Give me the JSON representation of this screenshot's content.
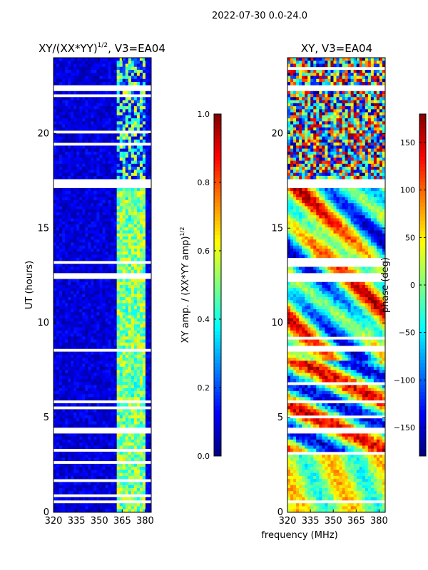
{
  "suptitle": "2022-07-30 0.0-24.0",
  "shared_xlabel": "frequency (MHz)",
  "colormap": "jet",
  "chart_data": [
    {
      "type": "heatmap",
      "title": "XY/(XX*YY)",
      "title_sup": "1/2",
      "title_suffix": ", V3=EA04",
      "ylabel": "UT (hours)",
      "xlim": [
        320,
        384
      ],
      "ylim": [
        0,
        24
      ],
      "xticks": [
        "320",
        "335",
        "350",
        "365",
        "380"
      ],
      "xtick_values": [
        320,
        335,
        350,
        365,
        380
      ],
      "yticks": [
        "0",
        "5",
        "10",
        "15",
        "20"
      ],
      "ytick_values": [
        0,
        5,
        10,
        15,
        20
      ],
      "colorbar": {
        "label": "XY amp. / (XX*YY amp)",
        "label_sup": "1/2",
        "range": [
          0.0,
          1.0
        ],
        "ticks": [
          "0.0",
          "0.2",
          "0.4",
          "0.6",
          "0.8",
          "1.0"
        ],
        "tick_values": [
          0.0,
          0.2,
          0.4,
          0.6,
          0.8,
          1.0
        ]
      },
      "bright_bands_mhz": [
        [
          361,
          363
        ],
        [
          364,
          367
        ],
        [
          368,
          372
        ],
        [
          373,
          376
        ],
        [
          377,
          380
        ]
      ],
      "gap_hours": [
        [
          22.3,
          22.6
        ],
        [
          17.2,
          17.6
        ],
        [
          13.1,
          13.3
        ],
        [
          12.3,
          12.6
        ],
        [
          8.4,
          8.6
        ],
        [
          5.7,
          5.9
        ],
        [
          4.2,
          4.4
        ],
        [
          0.5,
          0.65
        ]
      ]
    },
    {
      "type": "heatmap",
      "title": "XY, V3=EA04",
      "ylabel": "",
      "xlim": [
        320,
        384
      ],
      "ylim": [
        0,
        24
      ],
      "xticks": [
        "320",
        "335",
        "350",
        "365",
        "380"
      ],
      "xtick_values": [
        320,
        335,
        350,
        365,
        380
      ],
      "yticks": [
        "0",
        "5",
        "10",
        "15",
        "20"
      ],
      "ytick_values": [
        0,
        5,
        10,
        15,
        20
      ],
      "colorbar": {
        "label": "phase (deg)",
        "range": [
          -180,
          180
        ],
        "ticks": [
          "−150",
          "−100",
          "−50",
          "0",
          "50",
          "100",
          "150"
        ],
        "tick_values": [
          -150,
          -100,
          -50,
          0,
          50,
          100,
          150
        ]
      },
      "gap_hours": [
        [
          22.3,
          22.6
        ],
        [
          17.2,
          17.6
        ],
        [
          13.1,
          13.3
        ],
        [
          12.3,
          12.6
        ],
        [
          8.4,
          8.6
        ],
        [
          5.7,
          5.9
        ],
        [
          4.2,
          4.4
        ],
        [
          0.5,
          0.65
        ]
      ]
    }
  ]
}
